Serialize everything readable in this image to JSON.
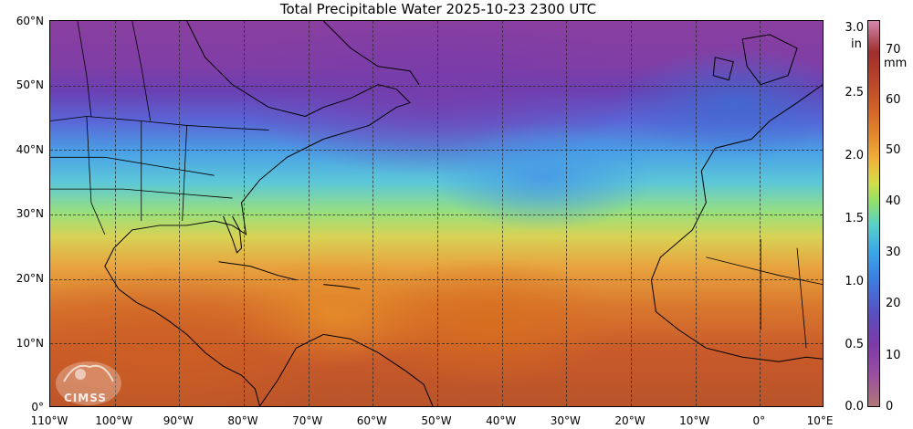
{
  "title": "Total Precipitable Water  2025-10-23 2300 UTC",
  "map": {
    "lat_labels": [
      "60°N",
      "50°N",
      "40°N",
      "30°N",
      "20°N",
      "10°N",
      "0°"
    ],
    "lon_labels": [
      "110°W",
      "100°W",
      "90°W",
      "80°W",
      "70°W",
      "60°W",
      "50°W",
      "40°W",
      "30°W",
      "20°W",
      "10°W",
      "0°",
      "10°E"
    ],
    "lat_range": [
      0,
      60
    ],
    "lon_range": [
      -110,
      10
    ],
    "gridlines": true,
    "logo_text": "CIMSS"
  },
  "colorbar": {
    "unit_in": "in",
    "unit_mm": "mm",
    "ticks_in": [
      "3.0",
      "2.5",
      "2.0",
      "1.5",
      "1.0",
      "0.5",
      "0.0"
    ],
    "ticks_mm": [
      "70",
      "60",
      "50",
      "40",
      "30",
      "20",
      "10",
      "0"
    ],
    "colors": [
      "#b07878",
      "#7d3aa8",
      "#3b7fe0",
      "#57d0c8",
      "#d4dd48",
      "#e48a2e",
      "#b3402a",
      "#d488b0"
    ]
  }
}
